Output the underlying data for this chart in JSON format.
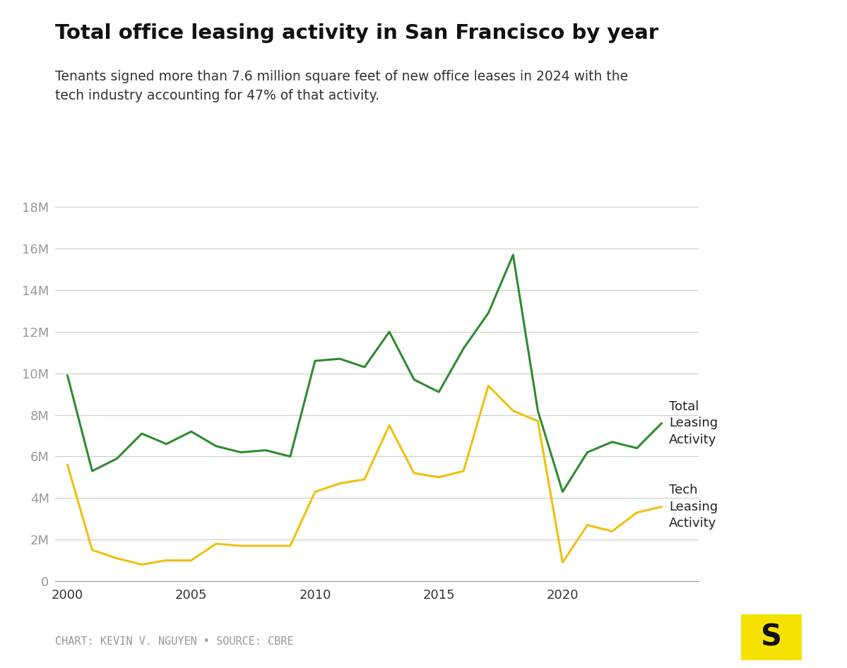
{
  "title": "Total office leasing activity in San Francisco by year",
  "subtitle": "Tenants signed more than 7.6 million square feet of new office leases in 2024 with the\ntech industry accounting for 47% of that activity.",
  "footer": "CHART: KEVIN V. NGUYEN • SOURCE: CBRE",
  "years": [
    2000,
    2001,
    2002,
    2003,
    2004,
    2005,
    2006,
    2007,
    2008,
    2009,
    2010,
    2011,
    2012,
    2013,
    2014,
    2015,
    2016,
    2017,
    2018,
    2019,
    2020,
    2021,
    2022,
    2023,
    2024
  ],
  "total_leasing": [
    9900000,
    5300000,
    5900000,
    7100000,
    6600000,
    7200000,
    6500000,
    6200000,
    6300000,
    6000000,
    10600000,
    10700000,
    10300000,
    12000000,
    9700000,
    9100000,
    11200000,
    12900000,
    15700000,
    8200000,
    4300000,
    6200000,
    6700000,
    6400000,
    7600000
  ],
  "tech_leasing": [
    5600000,
    1500000,
    1100000,
    800000,
    1000000,
    1000000,
    1800000,
    1700000,
    1700000,
    1700000,
    4300000,
    4700000,
    4900000,
    7500000,
    5200000,
    5000000,
    5300000,
    9400000,
    8200000,
    7700000,
    900000,
    2700000,
    2400000,
    3300000,
    3580000
  ],
  "total_color": "#2e8b2e",
  "tech_color": "#f0c010",
  "background_color": "#ffffff",
  "ylim": [
    0,
    18000000
  ],
  "ytick_step": 2000000,
  "label_total": "Total\nLeasing\nActivity",
  "label_tech": "Tech\nLeasing\nActivity",
  "logo_color": "#f5e200",
  "logo_text": "S",
  "xticks": [
    2000,
    2005,
    2010,
    2015,
    2020
  ]
}
